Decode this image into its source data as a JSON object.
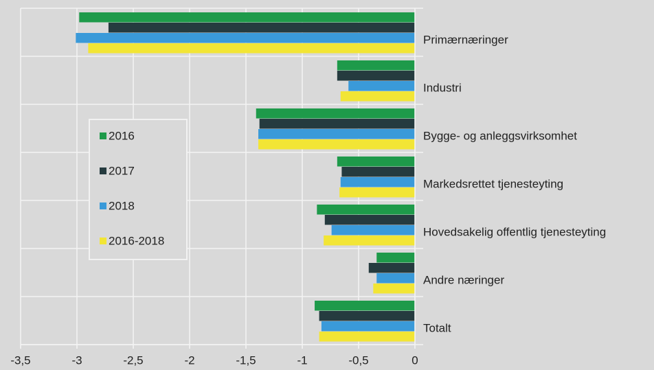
{
  "chart_data": {
    "type": "barh",
    "categories": [
      "Primærnæringer",
      "Industri",
      "Bygge- og anleggsvirksomhet",
      "Markedsrettet tjenesteyting",
      "Hovedsakelig offentlig tjenesteyting",
      "Andre næringer",
      "Totalt"
    ],
    "series": [
      {
        "name": "2016",
        "color": "#1e9a4a",
        "values": [
          -2.98,
          -0.69,
          -1.41,
          -0.69,
          -0.87,
          -0.34,
          -0.89
        ]
      },
      {
        "name": "2017",
        "color": "#253b3f",
        "values": [
          -2.72,
          -0.69,
          -1.38,
          -0.65,
          -0.8,
          -0.41,
          -0.85
        ]
      },
      {
        "name": "2018",
        "color": "#3a9ad9",
        "values": [
          -3.01,
          -0.59,
          -1.39,
          -0.66,
          -0.74,
          -0.34,
          -0.83
        ]
      },
      {
        "name": "2016-2018",
        "color": "#f2e535",
        "values": [
          -2.9,
          -0.66,
          -1.39,
          -0.67,
          -0.81,
          -0.37,
          -0.85
        ]
      }
    ],
    "xlim": [
      -3.5,
      0
    ],
    "xticks": [
      {
        "value": -3.5,
        "label": "-3,5"
      },
      -3,
      {
        "value": -2.5,
        "label": "-2,5"
      },
      -2,
      {
        "value": -1.5,
        "label": "-1,5"
      },
      -1,
      {
        "value": -0.5,
        "label": "-0,5"
      },
      0
    ],
    "grid": true
  }
}
